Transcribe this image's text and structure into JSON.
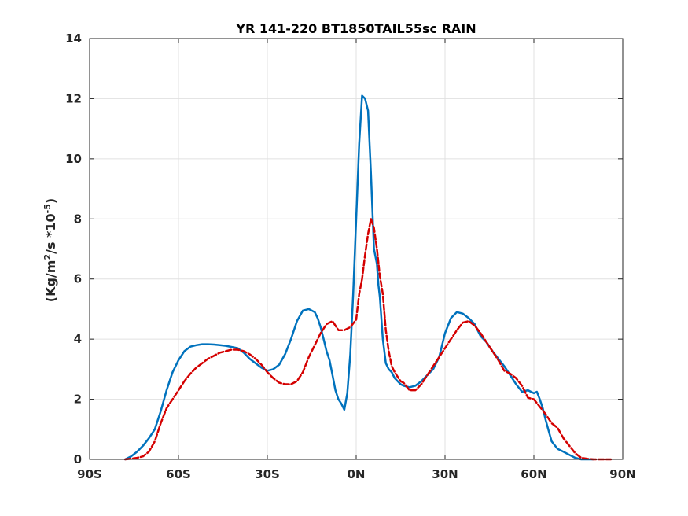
{
  "chart_data": {
    "type": "line",
    "title": "YR 141-220 BT1850TAIL55sc RAIN",
    "ylabel": {
      "prefix": "(Kg/m",
      "sup1": "2",
      "mid": "/s   *10",
      "sup2": "-5",
      "suffix": ")"
    },
    "xlabel": "",
    "xlim": [
      -90,
      90
    ],
    "ylim": [
      0,
      14
    ],
    "grid": true,
    "x_ticks": [
      -90,
      -60,
      -30,
      0,
      30,
      60,
      90
    ],
    "x_tick_labels": [
      "90S",
      "60S",
      "30S",
      "0N",
      "30N",
      "60N",
      "90N"
    ],
    "y_ticks": [
      0,
      2,
      4,
      6,
      8,
      10,
      12,
      14
    ],
    "y_tick_labels": [
      "0",
      "2",
      "4",
      "6",
      "8",
      "10",
      "12",
      "14"
    ],
    "series": [
      {
        "color": "#0072bd",
        "style": "solid",
        "x": [
          -78,
          -76,
          -74,
          -72,
          -70,
          -68,
          -66,
          -64,
          -62,
          -60,
          -58,
          -56,
          -54,
          -52,
          -50,
          -48,
          -46,
          -44,
          -42,
          -40,
          -38,
          -36,
          -34,
          -32,
          -30,
          -28,
          -26,
          -24,
          -22,
          -20,
          -18,
          -16,
          -14,
          -13,
          -12,
          -11,
          -10,
          -9,
          -8,
          -7,
          -6,
          -5,
          -4,
          -3,
          -2,
          -1,
          0,
          1,
          2,
          3,
          4,
          5,
          6,
          7,
          7.5,
          8,
          9,
          10,
          11,
          12,
          13,
          14,
          15,
          16,
          18,
          20,
          22,
          24,
          26,
          28,
          30,
          32,
          34,
          36,
          38,
          40,
          41,
          42,
          44,
          46,
          48,
          50,
          52,
          54,
          56,
          58,
          60,
          61,
          62,
          63,
          64,
          65,
          66,
          68,
          70,
          72,
          74,
          76,
          78,
          80
        ],
        "y": [
          0.0,
          0.1,
          0.25,
          0.45,
          0.7,
          1.0,
          1.6,
          2.3,
          2.9,
          3.3,
          3.6,
          3.75,
          3.8,
          3.83,
          3.83,
          3.82,
          3.8,
          3.78,
          3.74,
          3.7,
          3.55,
          3.35,
          3.2,
          3.05,
          2.95,
          3.0,
          3.15,
          3.5,
          4.0,
          4.6,
          4.95,
          5.0,
          4.9,
          4.7,
          4.4,
          4.0,
          3.6,
          3.3,
          2.8,
          2.3,
          2.0,
          1.85,
          1.65,
          2.2,
          3.5,
          5.5,
          8.0,
          10.5,
          12.1,
          12.0,
          11.6,
          9.5,
          7.0,
          6.5,
          5.8,
          5.4,
          4.0,
          3.2,
          3.0,
          2.9,
          2.7,
          2.6,
          2.5,
          2.45,
          2.4,
          2.45,
          2.6,
          2.8,
          3.0,
          3.4,
          4.2,
          4.7,
          4.9,
          4.85,
          4.7,
          4.5,
          4.3,
          4.1,
          3.9,
          3.6,
          3.35,
          3.1,
          2.8,
          2.5,
          2.25,
          2.3,
          2.2,
          2.25,
          2.0,
          1.7,
          1.3,
          0.95,
          0.6,
          0.35,
          0.25,
          0.15,
          0.05,
          0.0,
          0.0,
          0.0
        ]
      },
      {
        "color": "#d40000",
        "style": "dashed",
        "x": [
          -78,
          -76,
          -74,
          -72,
          -70,
          -68,
          -66,
          -64,
          -62,
          -60,
          -58,
          -56,
          -54,
          -52,
          -50,
          -48,
          -46,
          -44,
          -42,
          -40,
          -38,
          -36,
          -34,
          -32,
          -30,
          -28,
          -26,
          -24,
          -22,
          -20,
          -18,
          -16,
          -14,
          -12,
          -10,
          -8,
          -6,
          -4,
          -2,
          0,
          1,
          2,
          3,
          4,
          5,
          6,
          7,
          8,
          9,
          10,
          11,
          12,
          13,
          14,
          15,
          16,
          18,
          20,
          22,
          24,
          26,
          28,
          30,
          32,
          34,
          36,
          38,
          40,
          42,
          44,
          46,
          48,
          50,
          52,
          54,
          56,
          58,
          60,
          62,
          64,
          66,
          68,
          70,
          72,
          74,
          76,
          78,
          80,
          82,
          84,
          86
        ],
        "y": [
          0.0,
          0.02,
          0.05,
          0.1,
          0.25,
          0.6,
          1.2,
          1.7,
          2.0,
          2.3,
          2.6,
          2.85,
          3.05,
          3.2,
          3.35,
          3.45,
          3.55,
          3.6,
          3.65,
          3.65,
          3.6,
          3.5,
          3.35,
          3.15,
          2.9,
          2.7,
          2.55,
          2.5,
          2.5,
          2.6,
          2.9,
          3.4,
          3.8,
          4.2,
          4.5,
          4.6,
          4.3,
          4.3,
          4.4,
          4.65,
          5.5,
          6.0,
          6.8,
          7.5,
          8.0,
          7.7,
          7.0,
          6.1,
          5.5,
          4.3,
          3.6,
          3.1,
          2.9,
          2.75,
          2.6,
          2.55,
          2.3,
          2.3,
          2.5,
          2.8,
          3.1,
          3.4,
          3.7,
          4.0,
          4.3,
          4.55,
          4.6,
          4.45,
          4.2,
          3.9,
          3.6,
          3.3,
          2.95,
          2.85,
          2.7,
          2.45,
          2.05,
          2.0,
          1.75,
          1.5,
          1.2,
          1.05,
          0.7,
          0.45,
          0.2,
          0.05,
          0.02,
          0.0,
          0.0,
          0.0,
          0.0
        ]
      }
    ]
  }
}
